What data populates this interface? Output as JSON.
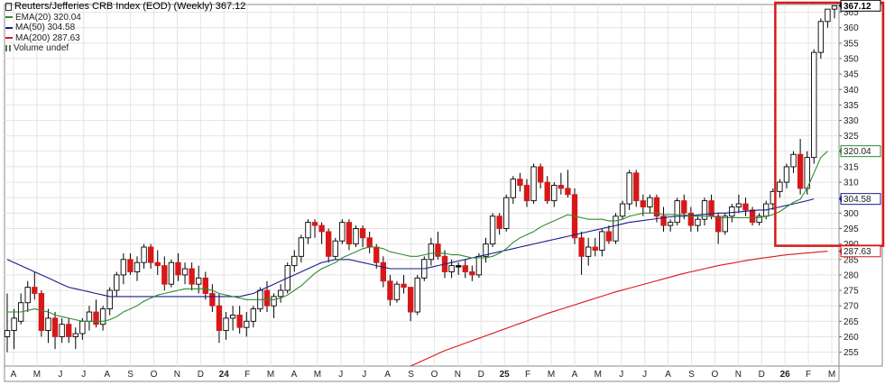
{
  "legend": {
    "title": "Reuters/Jefferies CRB Index (EOD) (Weekly) 367.12",
    "ema20": "EMA(20) 320.04",
    "ma50": "MA(50) 304.58",
    "ma200": "MA(200) 287.63",
    "volume": "Volume undef"
  },
  "colors": {
    "up": "#ffffff",
    "down": "#d81818",
    "doji": "#000000",
    "ema20": "#2e8b2e",
    "ma50": "#1a1a8c",
    "ma200": "#d81818",
    "highlight": "#d81818",
    "grid": "#e4e4e4"
  },
  "chart_data": {
    "type": "candlestick",
    "title": "Reuters/Jefferies CRB Index (EOD) (Weekly) 367.12",
    "ylim": [
      250.5,
      367.5
    ],
    "y_ticks": [
      255,
      260,
      265,
      270,
      275,
      280,
      285,
      290,
      295,
      300,
      305,
      310,
      315,
      320,
      325,
      330,
      335,
      340,
      345,
      350,
      355,
      360,
      365
    ],
    "x_tick_labels": [
      "A",
      "M",
      "J",
      "J",
      "A",
      "S",
      "O",
      "N",
      "D",
      "24",
      "F",
      "M",
      "A",
      "M",
      "J",
      "J",
      "A",
      "S",
      "O",
      "N",
      "D",
      "25",
      "F",
      "M",
      "A",
      "M",
      "J",
      "J",
      "A",
      "S",
      "O",
      "N",
      "D",
      "26",
      "F",
      "M"
    ],
    "grid": true,
    "last_value": 367.12,
    "price_tags": [
      {
        "label": "367.12",
        "value": 367.12,
        "series": "price"
      },
      {
        "label": "320.04",
        "value": 320.04,
        "series": "ema20"
      },
      {
        "label": "304.58",
        "value": 304.58,
        "series": "ma50"
      },
      {
        "label": "287.63",
        "value": 287.63,
        "series": "ma200"
      }
    ],
    "candles": [
      [
        260,
        274,
        255,
        262
      ],
      [
        262,
        269,
        256,
        266
      ],
      [
        265,
        274,
        264,
        271
      ],
      [
        271,
        278,
        268,
        276
      ],
      [
        276,
        281,
        272,
        274
      ],
      [
        274,
        275,
        260,
        262
      ],
      [
        262,
        269,
        258,
        266
      ],
      [
        266,
        268,
        256,
        260
      ],
      [
        260,
        266,
        258,
        264
      ],
      [
        264,
        266,
        258,
        260
      ],
      [
        260,
        263,
        256,
        261
      ],
      [
        261,
        266,
        259,
        265
      ],
      [
        265,
        270,
        262,
        268
      ],
      [
        268,
        272,
        263,
        264
      ],
      [
        264,
        270,
        262,
        269
      ],
      [
        269,
        276,
        267,
        275
      ],
      [
        275,
        281,
        273,
        280
      ],
      [
        280,
        287,
        277,
        285
      ],
      [
        285,
        287,
        280,
        281
      ],
      [
        281,
        286,
        278,
        284
      ],
      [
        284,
        290,
        282,
        289
      ],
      [
        289,
        290,
        282,
        284
      ],
      [
        284,
        288,
        280,
        283
      ],
      [
        283,
        286,
        275,
        277
      ],
      [
        277,
        285,
        276,
        284
      ],
      [
        284,
        287,
        278,
        280
      ],
      [
        280,
        284,
        277,
        282
      ],
      [
        282,
        284,
        275,
        277
      ],
      [
        277,
        283,
        274,
        279
      ],
      [
        279,
        281,
        272,
        274
      ],
      [
        274,
        277,
        268,
        270
      ],
      [
        270,
        274,
        258,
        262
      ],
      [
        262,
        268,
        259,
        266
      ],
      [
        266,
        270,
        262,
        267
      ],
      [
        267,
        270,
        261,
        263
      ],
      [
        263,
        268,
        260,
        265
      ],
      [
        265,
        270,
        263,
        269
      ],
      [
        269,
        276,
        268,
        275
      ],
      [
        275,
        278,
        268,
        270
      ],
      [
        270,
        274,
        266,
        273
      ],
      [
        273,
        277,
        271,
        275
      ],
      [
        275,
        284,
        274,
        283
      ],
      [
        283,
        288,
        281,
        286
      ],
      [
        286,
        293,
        284,
        292
      ],
      [
        292,
        298,
        290,
        297
      ],
      [
        297,
        298,
        292,
        296
      ],
      [
        296,
        297,
        290,
        294
      ],
      [
        294,
        295,
        284,
        286
      ],
      [
        286,
        292,
        285,
        291
      ],
      [
        291,
        298,
        290,
        297
      ],
      [
        297,
        298,
        288,
        290
      ],
      [
        290,
        296,
        289,
        295
      ],
      [
        295,
        296,
        289,
        292
      ],
      [
        292,
        294,
        287,
        289
      ],
      [
        289,
        290,
        282,
        284
      ],
      [
        284,
        286,
        276,
        278
      ],
      [
        278,
        280,
        270,
        272
      ],
      [
        272,
        278,
        271,
        277
      ],
      [
        277,
        280,
        274,
        276
      ],
      [
        276,
        276,
        265,
        268
      ],
      [
        268,
        280,
        267,
        279
      ],
      [
        279,
        286,
        278,
        285
      ],
      [
        285,
        292,
        283,
        290
      ],
      [
        290,
        294,
        285,
        286
      ],
      [
        286,
        288,
        279,
        281
      ],
      [
        281,
        285,
        279,
        283
      ],
      [
        283,
        284,
        280,
        283
      ],
      [
        283,
        285,
        279,
        281
      ],
      [
        281,
        283,
        278,
        280
      ],
      [
        280,
        287,
        279,
        286
      ],
      [
        286,
        292,
        284,
        290
      ],
      [
        290,
        300,
        289,
        299
      ],
      [
        299,
        300,
        293,
        295
      ],
      [
        295,
        306,
        294,
        305
      ],
      [
        305,
        312,
        303,
        311
      ],
      [
        311,
        313,
        307,
        309
      ],
      [
        309,
        311,
        302,
        304
      ],
      [
        304,
        316,
        303,
        315
      ],
      [
        315,
        316,
        308,
        310
      ],
      [
        310,
        312,
        303,
        304
      ],
      [
        304,
        310,
        302,
        309
      ],
      [
        309,
        313,
        306,
        308
      ],
      [
        308,
        314,
        305,
        306
      ],
      [
        306,
        308,
        290,
        292
      ],
      [
        292,
        294,
        280,
        286
      ],
      [
        286,
        292,
        283,
        289
      ],
      [
        289,
        292,
        286,
        288
      ],
      [
        288,
        295,
        286,
        294
      ],
      [
        294,
        296,
        290,
        291
      ],
      [
        291,
        300,
        290,
        299
      ],
      [
        299,
        304,
        298,
        303
      ],
      [
        303,
        314,
        301,
        313
      ],
      [
        313,
        314,
        302,
        304
      ],
      [
        304,
        306,
        299,
        302
      ],
      [
        302,
        306,
        300,
        305
      ],
      [
        305,
        306,
        297,
        299
      ],
      [
        299,
        302,
        294,
        296
      ],
      [
        296,
        298,
        294,
        297
      ],
      [
        297,
        305,
        296,
        304
      ],
      [
        304,
        306,
        298,
        300
      ],
      [
        300,
        302,
        294,
        296
      ],
      [
        296,
        299,
        294,
        298
      ],
      [
        298,
        305,
        296,
        304
      ],
      [
        304,
        306,
        298,
        299
      ],
      [
        299,
        300,
        290,
        294
      ],
      [
        294,
        300,
        293,
        299
      ],
      [
        299,
        303,
        297,
        302
      ],
      [
        302,
        306,
        300,
        303
      ],
      [
        303,
        305,
        299,
        301
      ],
      [
        301,
        302,
        296,
        297
      ],
      [
        297,
        300,
        296,
        299
      ],
      [
        299,
        304,
        298,
        303
      ],
      [
        303,
        308,
        301,
        307
      ],
      [
        307,
        311,
        305,
        310
      ],
      [
        310,
        316,
        308,
        315
      ],
      [
        315,
        320,
        313,
        319
      ],
      [
        319,
        324,
        306,
        308
      ],
      [
        308,
        320,
        306,
        318
      ],
      [
        318,
        353,
        316,
        352
      ],
      [
        352,
        363,
        350,
        362
      ],
      [
        362,
        366,
        360,
        366
      ],
      [
        366,
        367,
        363,
        367.12
      ]
    ],
    "ema20": [
      268,
      268,
      268,
      268.5,
      269,
      268.5,
      268,
      267,
      266.5,
      266,
      265.5,
      265,
      265,
      265,
      265,
      265.5,
      266.5,
      268,
      269,
      270,
      271.5,
      272.5,
      273.5,
      274,
      274.5,
      275,
      275.5,
      275.5,
      275.5,
      275.5,
      275,
      274,
      273.5,
      273,
      272.5,
      272,
      272,
      272,
      272,
      272,
      272.5,
      273.5,
      275,
      276.5,
      278.5,
      280.5,
      282,
      283,
      284,
      285.5,
      286.5,
      287.5,
      288.5,
      289,
      289,
      288.5,
      287.5,
      287,
      286.5,
      286,
      286,
      286.5,
      287,
      287,
      287,
      286.5,
      286.5,
      286,
      285.5,
      285.5,
      285.5,
      286,
      287,
      288.5,
      290.5,
      292,
      293,
      294,
      295.5,
      296.5,
      297.5,
      298.5,
      299.5,
      299,
      298.5,
      298,
      298,
      298,
      297.5,
      297.5,
      298,
      299,
      299.5,
      300,
      300,
      300,
      299.5,
      299.5,
      299.5,
      299.5,
      299,
      299,
      299,
      299,
      298.5,
      298.5,
      298.5,
      298.5,
      298.5,
      298.5,
      298.5,
      299,
      299.5,
      300.5,
      302,
      303.5,
      304.5,
      308,
      313,
      318,
      320.04
    ],
    "ma50": [
      285,
      284,
      283,
      282,
      281,
      280,
      279,
      278,
      277,
      276,
      275.5,
      275,
      274.5,
      274,
      273.5,
      273,
      273,
      273,
      273,
      273,
      273,
      273,
      273,
      273,
      273,
      273,
      273,
      273,
      273,
      273,
      273,
      273,
      273,
      273,
      273,
      273.5,
      274,
      275,
      276,
      277,
      278,
      279,
      280,
      281,
      282,
      283,
      284,
      284.5,
      285,
      285,
      285,
      284.5,
      284,
      283.5,
      283,
      282.5,
      282,
      282,
      282,
      282,
      282,
      282,
      282.5,
      283,
      283.5,
      284,
      284.5,
      285,
      285.5,
      286,
      286.5,
      287,
      287.5,
      288,
      288.5,
      289,
      289.5,
      290,
      290.5,
      291,
      291.5,
      292,
      292.5,
      293,
      293.5,
      294,
      294.5,
      295,
      295.5,
      296,
      296.5,
      297,
      297.3,
      297.6,
      297.9,
      298.2,
      298.5,
      298.8,
      299,
      299,
      299.2,
      299.4,
      299.6,
      299.8,
      300,
      300,
      300.2,
      300.4,
      300.6,
      300.8,
      301,
      301,
      301.5,
      302,
      302.5,
      303,
      303.5,
      304,
      304.58
    ],
    "ma200": [
      null,
      null,
      null,
      null,
      null,
      null,
      null,
      null,
      null,
      null,
      null,
      null,
      null,
      null,
      null,
      null,
      null,
      null,
      null,
      null,
      null,
      null,
      null,
      null,
      null,
      null,
      null,
      null,
      null,
      null,
      null,
      null,
      null,
      null,
      null,
      null,
      null,
      null,
      null,
      null,
      null,
      null,
      null,
      null,
      null,
      null,
      null,
      null,
      null,
      null,
      null,
      null,
      null,
      null,
      null,
      null,
      null,
      null,
      null,
      250.5,
      251.5,
      252.5,
      253.5,
      254.5,
      255.5,
      256.3,
      257.1,
      257.9,
      258.7,
      259.5,
      260.3,
      261.1,
      261.9,
      262.7,
      263.5,
      264.3,
      265.1,
      265.9,
      266.7,
      267.5,
      268.2,
      268.9,
      269.6,
      270.3,
      271,
      271.7,
      272.4,
      273.1,
      273.8,
      274.5,
      275.1,
      275.7,
      276.3,
      276.9,
      277.5,
      278.1,
      278.7,
      279.3,
      279.9,
      280.5,
      281,
      281.5,
      282,
      282.5,
      283,
      283.4,
      283.8,
      284.2,
      284.6,
      285,
      285.3,
      285.6,
      285.9,
      286.2,
      286.5,
      286.7,
      286.9,
      287.1,
      287.3,
      287.5,
      287.63
    ]
  }
}
